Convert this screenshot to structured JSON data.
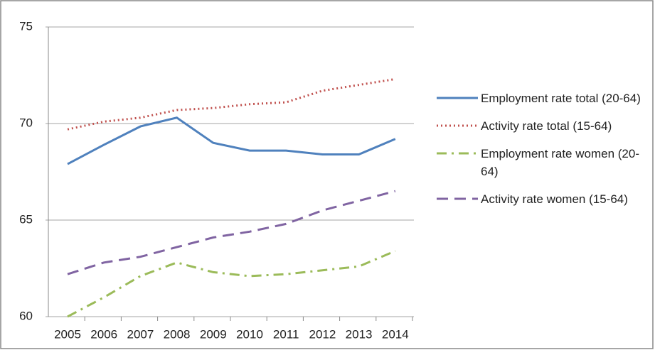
{
  "chart_data": {
    "type": "line",
    "categories": [
      "2005",
      "2006",
      "2007",
      "2008",
      "2009",
      "2010",
      "2011",
      "2012",
      "2013",
      "2014"
    ],
    "series": [
      {
        "name": "Employment rate total (20-64)",
        "color": "#4f81bd",
        "dash": "solid",
        "values": [
          67.9,
          68.9,
          69.85,
          70.3,
          69.0,
          68.6,
          68.6,
          68.4,
          68.4,
          69.2
        ]
      },
      {
        "name": "Activity rate total (15-64)",
        "color": "#c0504d",
        "dash": "dotted",
        "values": [
          69.7,
          70.1,
          70.3,
          70.7,
          70.8,
          71.0,
          71.1,
          71.7,
          72.0,
          72.3
        ]
      },
      {
        "name": "Employment rate women (20-64)",
        "color": "#9bbb59",
        "dash": "dashdot",
        "values": [
          60.0,
          61.0,
          62.1,
          62.8,
          62.3,
          62.1,
          62.2,
          62.4,
          62.6,
          63.4
        ]
      },
      {
        "name": "Activity rate women (15-64)",
        "color": "#8064a2",
        "dash": "dashed",
        "values": [
          62.2,
          62.8,
          63.1,
          63.6,
          64.1,
          64.4,
          64.8,
          65.5,
          66.0,
          66.5
        ]
      }
    ],
    "ylim": [
      60,
      75
    ],
    "yticks": [
      60,
      65,
      70,
      75
    ],
    "grid": true
  }
}
